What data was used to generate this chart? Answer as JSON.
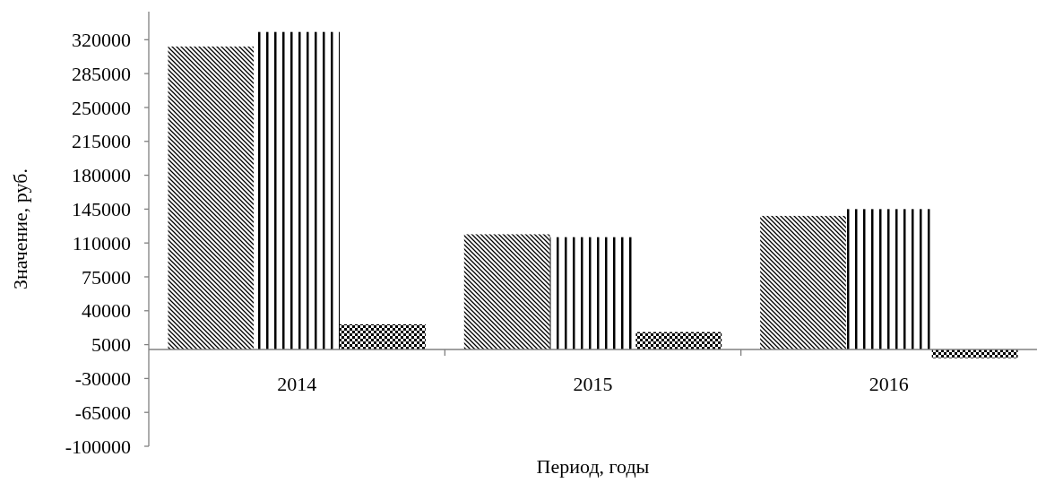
{
  "chart_data": {
    "type": "bar",
    "xlabel": "Период, годы",
    "ylabel": "Значение, руб.",
    "categories": [
      "2014",
      "2015",
      "2016"
    ],
    "series": [
      {
        "color": "#000000",
        "values": [
          313000,
          119000,
          138000
        ]
      },
      {
        "color": "#000000",
        "values": [
          328000,
          116000,
          145000
        ]
      },
      {
        "color": "#000000",
        "values": [
          26000,
          18000,
          -9000
        ]
      }
    ],
    "ylim": [
      -100000,
      349000
    ],
    "yticks": [
      -100000,
      -65000,
      -30000,
      5000,
      40000,
      75000,
      110000,
      145000,
      180000,
      215000,
      250000,
      285000,
      320000
    ],
    "grid": false
  }
}
